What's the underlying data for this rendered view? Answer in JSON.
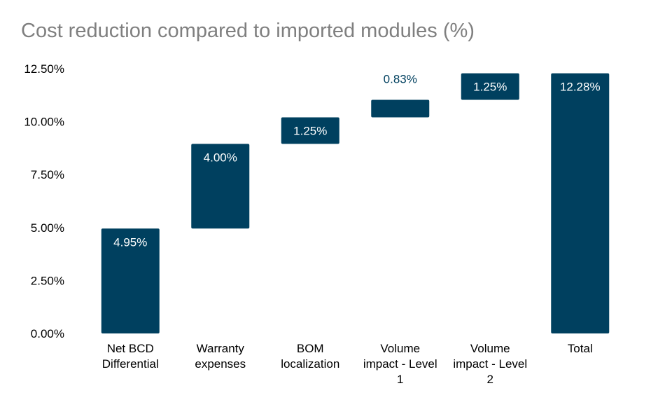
{
  "chart_data": {
    "type": "bar",
    "subtype": "waterfall",
    "title": "Cost reduction compared to imported modules (%)",
    "xlabel": "",
    "ylabel": "",
    "ylim": [
      0,
      12.5
    ],
    "yticks": [
      "0.00%",
      "2.50%",
      "5.00%",
      "7.50%",
      "10.00%",
      "12.50%"
    ],
    "ytick_values": [
      0,
      2.5,
      5,
      7.5,
      10,
      12.5
    ],
    "grid": false,
    "legend": "none",
    "bar_color": "#00405f",
    "categories": [
      [
        "Net BCD",
        "Differential"
      ],
      [
        "Warranty",
        "expenses"
      ],
      [
        "BOM",
        "localization"
      ],
      [
        "Volume",
        "impact - Level",
        "1"
      ],
      [
        "Volume",
        "impact - Level",
        "2"
      ],
      [
        "Total"
      ]
    ],
    "values": [
      4.95,
      4.0,
      1.25,
      0.83,
      1.25,
      12.28
    ],
    "data_labels": [
      "4.95%",
      "4.00%",
      "1.25%",
      "0.83%",
      "1.25%",
      "12.28%"
    ],
    "is_total": [
      false,
      false,
      false,
      false,
      false,
      true
    ]
  }
}
